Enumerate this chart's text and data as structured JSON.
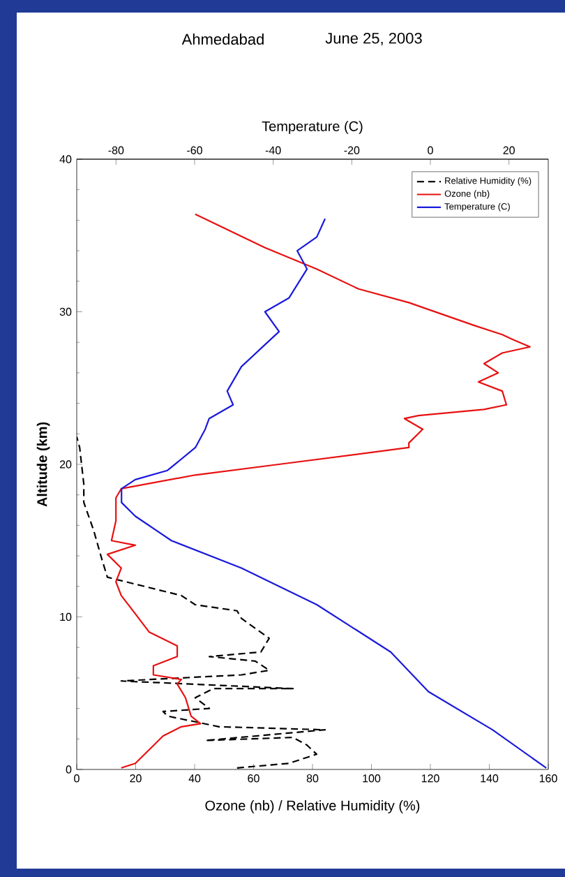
{
  "chart_data": {
    "type": "line",
    "title": "Ahmedabad",
    "subtitle": "June 25, 2003",
    "xlabel": "Ozone (nb) / Relative Humidity (%)",
    "ylabel": "Altitude (km)",
    "x2label": "Temperature (C)",
    "xlim": [
      0,
      160
    ],
    "xticks": [
      0,
      20,
      40,
      60,
      80,
      100,
      120,
      140,
      160
    ],
    "x2lim": [
      -90,
      30
    ],
    "x2ticks": [
      -80,
      -60,
      -40,
      -20,
      0,
      20
    ],
    "ylim": [
      0,
      40
    ],
    "yticks": [
      0,
      10,
      20,
      30,
      40
    ],
    "legend": "top right",
    "grid": false,
    "marker": "none",
    "series": [
      {
        "name": "Relative Humidity (%)",
        "color": "#000000",
        "line_style": "dashed",
        "x": [
          54.4,
          72.0,
          81.4,
          78.1,
          73.4,
          43.6,
          84.3,
          48.3,
          30.8,
          29.3,
          45.0,
          40.2,
          46.4,
          73.4,
          15.1,
          55.9,
          65.3,
          60.6,
          45.0,
          62.5,
          65.3,
          55.9,
          54.4,
          40.2,
          35.5,
          10.4,
          8.5,
          5.7,
          2.4,
          2.4,
          1.0,
          0.0
        ],
        "values": [
          0.1,
          0.4,
          1.0,
          1.6,
          2.1,
          1.9,
          2.6,
          2.8,
          3.5,
          3.8,
          4.0,
          4.7,
          5.3,
          5.3,
          5.8,
          6.2,
          6.5,
          7.1,
          7.4,
          7.7,
          8.6,
          9.9,
          10.4,
          10.8,
          11.4,
          12.6,
          13.8,
          15.7,
          17.5,
          18.7,
          21.1,
          21.8
        ]
      },
      {
        "name": "Ozone (nb)",
        "color": "#e81010",
        "line_style": "solid",
        "x": [
          15.1,
          19.9,
          29.3,
          35.5,
          42.0,
          38.8,
          36.9,
          34.1,
          35.5,
          26.0,
          26.0,
          34.1,
          34.1,
          24.6,
          19.9,
          15.1,
          13.3,
          15.1,
          10.4,
          19.9,
          11.8,
          13.3,
          13.3,
          15.1,
          40.2,
          68.6,
          112.7,
          112.7,
          117.4,
          111.2,
          116.0,
          138.2,
          145.8,
          144.4,
          136.3,
          143.0,
          138.2,
          144.4,
          153.8,
          147.7,
          144.4,
          134.9,
          112.7,
          95.6,
          81.4,
          63.9,
          40.2
        ],
        "values": [
          0.1,
          0.4,
          2.2,
          2.8,
          3.0,
          3.5,
          4.7,
          5.6,
          5.9,
          6.2,
          6.8,
          7.4,
          8.1,
          9.0,
          10.2,
          11.4,
          12.3,
          13.2,
          14.1,
          14.7,
          15.0,
          16.3,
          17.8,
          18.4,
          19.3,
          20.0,
          21.1,
          21.4,
          22.3,
          23.0,
          23.2,
          23.6,
          23.9,
          24.8,
          25.4,
          26.0,
          26.6,
          27.3,
          27.7,
          28.2,
          28.5,
          29.1,
          30.6,
          31.5,
          32.8,
          34.2,
          36.4
        ]
      },
      {
        "name": "Temperature (C)",
        "color": "#1a1adb",
        "line_style": "solid",
        "axis": "x2",
        "x": [
          29.5,
          15.8,
          -0.5,
          -10.1,
          -28.9,
          -48.1,
          -65.9,
          -75.1,
          -78.6,
          -78.6,
          -75.1,
          -66.9,
          -59.8,
          -57.3,
          -56.3,
          -50.2,
          -51.7,
          -48.1,
          -43.1,
          -38.5,
          -42.1,
          -36.0,
          -31.4,
          -33.9,
          -28.9,
          -26.8
        ],
        "values": [
          0.1,
          2.6,
          5.1,
          7.7,
          10.8,
          13.2,
          15.0,
          16.6,
          17.5,
          18.4,
          19.0,
          19.6,
          21.1,
          22.3,
          23.0,
          23.9,
          24.8,
          26.4,
          27.6,
          28.7,
          30.0,
          30.9,
          32.8,
          34.0,
          34.9,
          36.1
        ]
      }
    ]
  }
}
